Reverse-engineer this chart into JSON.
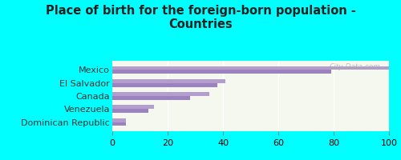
{
  "title": "Place of birth for the foreign-born population -\nCountries",
  "categories": [
    "Mexico",
    "El Salvador",
    "Canada",
    "Venezuela",
    "Dominican Republic"
  ],
  "bars_top": [
    100,
    41,
    35,
    15,
    5
  ],
  "bars_bottom": [
    79,
    38,
    28,
    13,
    5
  ],
  "bar_color_top": "#b39dcc",
  "bar_color_bottom": "#9b82be",
  "background_chart_left": "#e8f0d8",
  "background_chart_right": "#f5f8ee",
  "background_fig": "#00ffff",
  "xlim": [
    0,
    100
  ],
  "xticks": [
    0,
    20,
    40,
    60,
    80,
    100
  ],
  "watermark": "City-Data.com",
  "bar_height": 0.3,
  "title_fontsize": 10.5,
  "tick_fontsize": 8,
  "label_fontsize": 8
}
